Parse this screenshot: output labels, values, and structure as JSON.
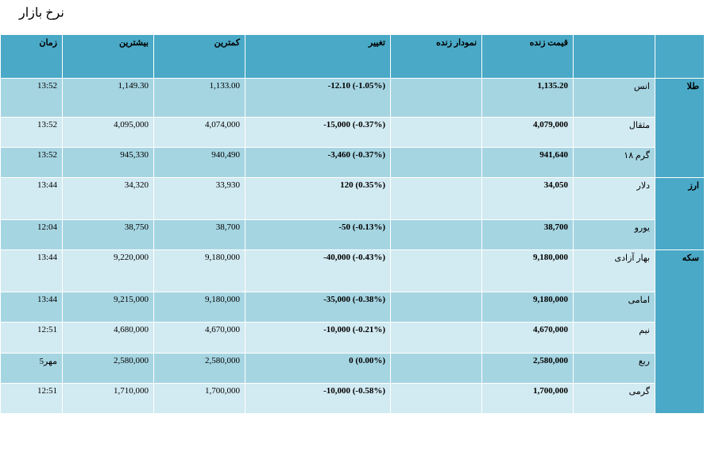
{
  "title": "نرخ بازار",
  "headers": {
    "time": "زمان",
    "high": "بیشترین",
    "low": "کمترین",
    "change": "تغییر",
    "chart": "نمودار زنده",
    "price": "قیمت زنده"
  },
  "categories": {
    "gold": "طلا",
    "currency": "ارز",
    "coin": "سکه"
  },
  "rows": [
    {
      "name": "انس",
      "price": "1,135.20",
      "change": "-12.10 (-1.05%)",
      "low": "1,133.00",
      "high": "1,149.30",
      "time": "13:52"
    },
    {
      "name": "مثقال",
      "price": "4,079,000",
      "change": "-15,000 (-0.37%)",
      "low": "4,074,000",
      "high": "4,095,000",
      "time": "13:52"
    },
    {
      "name": "گرم ۱۸",
      "price": "941,640",
      "change": "-3,460 (-0.37%)",
      "low": "940,490",
      "high": "945,330",
      "time": "13:52"
    },
    {
      "name": "دلار",
      "price": "34,050",
      "change": "120 (0.35%)",
      "low": "33,930",
      "high": "34,320",
      "time": "13:44"
    },
    {
      "name": "یورو",
      "price": "38,700",
      "change": "-50 (-0.13%)",
      "low": "38,700",
      "high": "38,750",
      "time": "12:04"
    },
    {
      "name": "بهار آزادی",
      "price": "9,180,000",
      "change": "-40,000 (-0.43%)",
      "low": "9,180,000",
      "high": "9,220,000",
      "time": "13:44"
    },
    {
      "name": "امامی",
      "price": "9,180,000",
      "change": "-35,000 (-0.38%)",
      "low": "9,180,000",
      "high": "9,215,000",
      "time": "13:44"
    },
    {
      "name": "نیم",
      "price": "4,670,000",
      "change": "-10,000 (-0.21%)",
      "low": "4,670,000",
      "high": "4,680,000",
      "time": "12:51"
    },
    {
      "name": "ربع",
      "price": "2,580,000",
      "change": "0 (0.00%)",
      "low": "2,580,000",
      "high": "2,580,000",
      "time": "5مهر"
    },
    {
      "name": "گرمی",
      "price": "1,700,000",
      "change": "-10,000 (-0.58%)",
      "low": "1,700,000",
      "high": "1,710,000",
      "time": "12:51"
    }
  ]
}
